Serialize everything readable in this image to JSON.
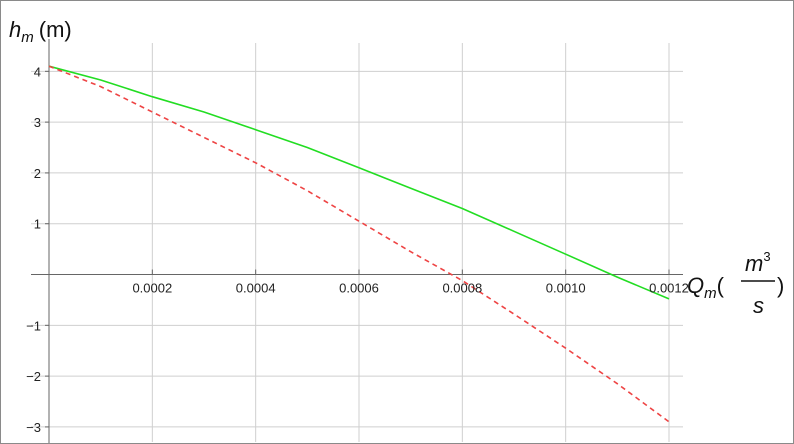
{
  "chart_data": {
    "type": "line",
    "ylabel": {
      "main": "h",
      "sub": "m",
      "unit": "(m)"
    },
    "xlabel": {
      "main": "Q",
      "sub": "m",
      "open": "(",
      "numer": "m",
      "numer_sup": "3",
      "denom": "s",
      "close": ")"
    },
    "xlim": [
      0,
      0.0012
    ],
    "ylim": [
      -3.1,
      4.4
    ],
    "grid": true,
    "x_ticks": [
      {
        "value": 0.0002,
        "label": "0.0002"
      },
      {
        "value": 0.0004,
        "label": "0.0004"
      },
      {
        "value": 0.0006,
        "label": "0.0006"
      },
      {
        "value": 0.0008,
        "label": "0.0008"
      },
      {
        "value": 0.001,
        "label": "0.0010"
      },
      {
        "value": 0.0012,
        "label": "0.0012"
      }
    ],
    "y_ticks": [
      {
        "value": 4,
        "label": "4"
      },
      {
        "value": 3,
        "label": "3"
      },
      {
        "value": 2,
        "label": "2"
      },
      {
        "value": 1,
        "label": "1"
      },
      {
        "value": -1,
        "label": "−1"
      },
      {
        "value": -2,
        "label": "−2"
      },
      {
        "value": -3,
        "label": "−3"
      }
    ],
    "series": [
      {
        "color": "#22dd22",
        "style": "solid",
        "x": [
          0,
          0.0001,
          0.0002,
          0.0003,
          0.0004,
          0.0005,
          0.0006,
          0.0007,
          0.0008,
          0.0009,
          0.001,
          0.0011,
          0.0012
        ],
        "y": [
          4.1,
          3.83,
          3.5,
          3.2,
          2.85,
          2.5,
          2.1,
          1.7,
          1.3,
          0.85,
          0.4,
          -0.05,
          -0.48
        ]
      },
      {
        "color": "#ee4444",
        "style": "dashed",
        "x": [
          0,
          0.0001,
          0.0002,
          0.0003,
          0.0004,
          0.0005,
          0.0006,
          0.0007,
          0.0008,
          0.0009,
          0.001,
          0.0011,
          0.0012
        ],
        "y": [
          4.1,
          3.7,
          3.2,
          2.7,
          2.2,
          1.65,
          1.05,
          0.45,
          -0.12,
          -0.78,
          -1.45,
          -2.15,
          -2.9
        ]
      }
    ]
  }
}
